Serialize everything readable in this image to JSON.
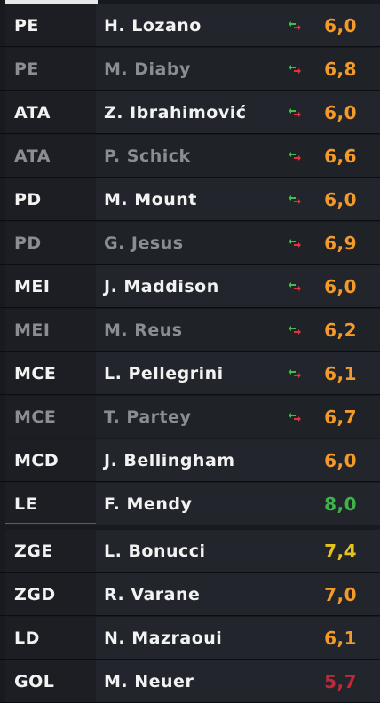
{
  "lineup": [
    {
      "position": "PE",
      "name": "H. Lozano",
      "rating": "6,0",
      "rating_color": "#f39a2b",
      "swap": true,
      "highlight": true
    },
    {
      "position": "PE",
      "name": "M. Diaby",
      "rating": "6,8",
      "rating_color": "#f39a2b",
      "swap": true,
      "highlight": false
    },
    {
      "position": "ATA",
      "name": "Z. Ibrahimović",
      "rating": "6,0",
      "rating_color": "#f39a2b",
      "swap": true,
      "highlight": true
    },
    {
      "position": "ATA",
      "name": "P. Schick",
      "rating": "6,6",
      "rating_color": "#f39a2b",
      "swap": true,
      "highlight": false
    },
    {
      "position": "PD",
      "name": "M. Mount",
      "rating": "6,0",
      "rating_color": "#f39a2b",
      "swap": true,
      "highlight": true
    },
    {
      "position": "PD",
      "name": "G. Jesus",
      "rating": "6,9",
      "rating_color": "#f39a2b",
      "swap": true,
      "highlight": false
    },
    {
      "position": "MEI",
      "name": "J. Maddison",
      "rating": "6,0",
      "rating_color": "#f39a2b",
      "swap": true,
      "highlight": true
    },
    {
      "position": "MEI",
      "name": "M. Reus",
      "rating": "6,2",
      "rating_color": "#f39a2b",
      "swap": true,
      "highlight": false
    },
    {
      "position": "MCE",
      "name": "L. Pellegrini",
      "rating": "6,1",
      "rating_color": "#f39a2b",
      "swap": true,
      "highlight": true
    },
    {
      "position": "MCE",
      "name": "T. Partey",
      "rating": "6,7",
      "rating_color": "#f39a2b",
      "swap": true,
      "highlight": false
    },
    {
      "position": "MCD",
      "name": "J. Bellingham",
      "rating": "6,0",
      "rating_color": "#f39a2b",
      "swap": false,
      "highlight": true
    },
    {
      "position": "LE",
      "name": "F. Mendy",
      "rating": "8,0",
      "rating_color": "#3fb34a",
      "swap": false,
      "highlight": true
    },
    {
      "position": "ZGE",
      "name": "L. Bonucci",
      "rating": "7,4",
      "rating_color": "#e8c21c",
      "swap": false,
      "highlight": true
    },
    {
      "position": "ZGD",
      "name": "R. Varane",
      "rating": "7,0",
      "rating_color": "#f39a2b",
      "swap": false,
      "highlight": true
    },
    {
      "position": "LD",
      "name": "N. Mazraoui",
      "rating": "6,1",
      "rating_color": "#f39a2b",
      "swap": false,
      "highlight": true
    },
    {
      "position": "GOL",
      "name": "M. Neuer",
      "rating": "5,7",
      "rating_color": "#c0283a",
      "swap": false,
      "highlight": true
    }
  ],
  "colors": {
    "swap_up": "#3fbf4a",
    "swap_down": "#d9363e"
  }
}
